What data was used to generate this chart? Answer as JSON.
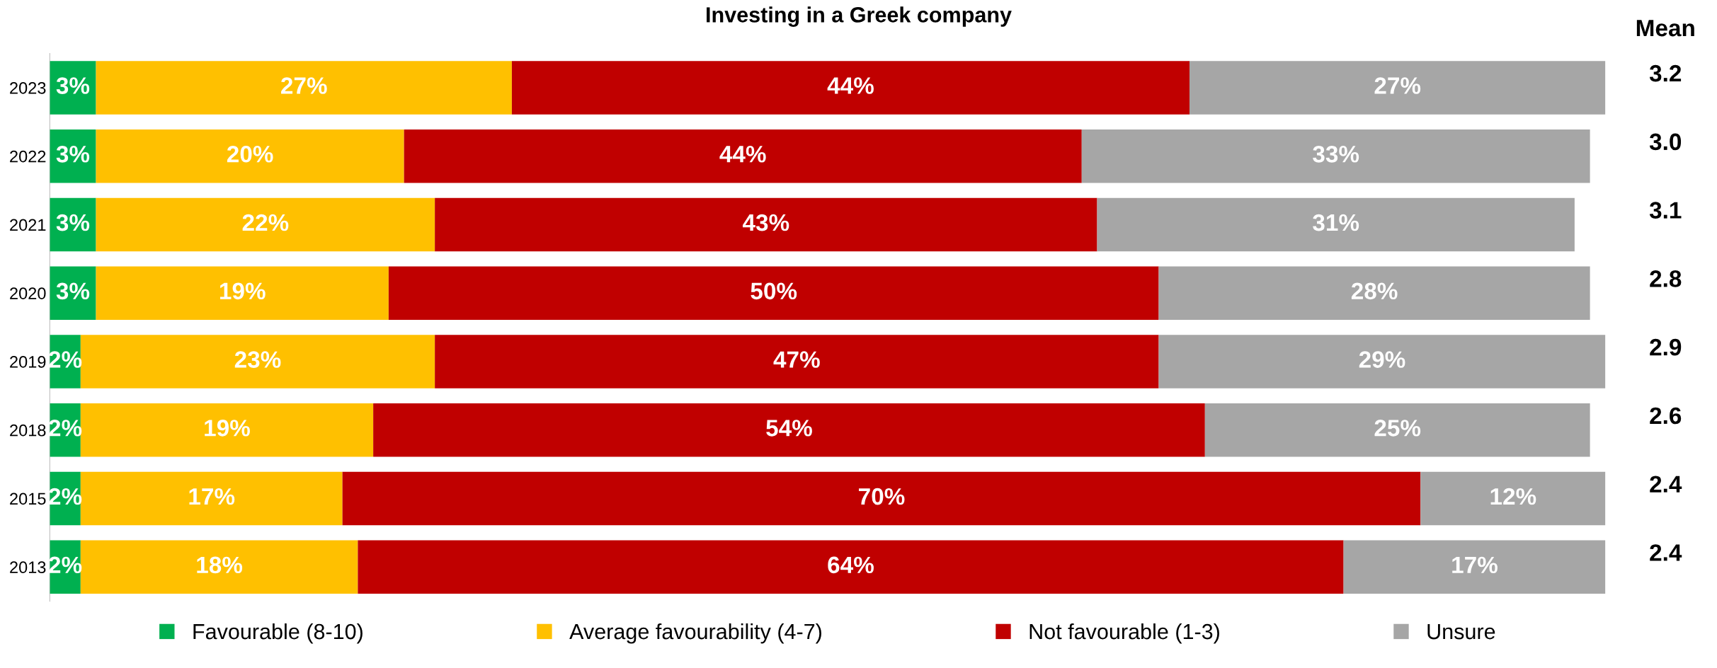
{
  "chart_data": {
    "type": "bar",
    "orientation": "horizontal",
    "stacked": true,
    "title": "Investing in a Greek company",
    "categories": [
      "2023",
      "2022",
      "2021",
      "2020",
      "2019",
      "2018",
      "2015",
      "2013"
    ],
    "series": [
      {
        "name": "Favourable (8-10)",
        "color": "#00b050",
        "values": [
          3,
          3,
          3,
          3,
          2,
          2,
          2,
          2
        ],
        "value_labels": [
          "3%",
          "3%",
          "3%",
          "3%",
          "2%",
          "2%",
          "2%",
          "2%"
        ]
      },
      {
        "name": "Average favourability (4-7)",
        "color": "#ffc000",
        "values": [
          27,
          20,
          22,
          19,
          23,
          19,
          17,
          18
        ],
        "value_labels": [
          "27%",
          "20%",
          "22%",
          "19%",
          "23%",
          "19%",
          "17%",
          "18%"
        ]
      },
      {
        "name": "Not favourable (1-3)",
        "color": "#c00000",
        "values": [
          44,
          44,
          43,
          50,
          47,
          54,
          70,
          64
        ],
        "value_labels": [
          "44%",
          "44%",
          "43%",
          "50%",
          "47%",
          "54%",
          "70%",
          "64%"
        ]
      },
      {
        "name": "Unsure",
        "color": "#a6a6a6",
        "values": [
          27,
          33,
          31,
          28,
          29,
          25,
          12,
          17
        ],
        "value_labels": [
          "27%",
          "33%",
          "31%",
          "28%",
          "29%",
          "25%",
          "12%",
          "17%"
        ]
      }
    ],
    "annotations": [
      "Mean",
      "3.2",
      "3.0",
      "3.1",
      "2.8",
      "2.9",
      "2.6",
      "2.4",
      "2.4"
    ],
    "legend": "bottom",
    "grid": false
  }
}
